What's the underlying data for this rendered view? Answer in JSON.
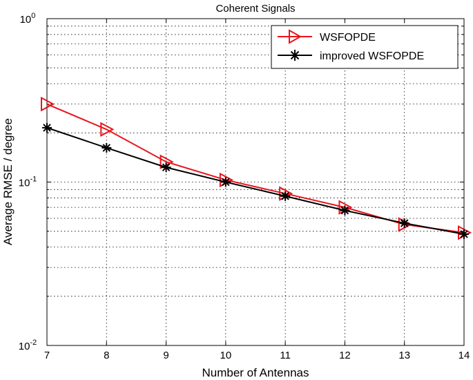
{
  "chart_data": {
    "type": "line",
    "title": "Coherent Signals",
    "xlabel": "Number of Antennas",
    "ylabel": "Average RMSE / degree",
    "x": [
      7,
      8,
      9,
      10,
      11,
      12,
      13,
      14
    ],
    "xlim": [
      7,
      14
    ],
    "ylim": [
      0.01,
      1
    ],
    "yscale": "log",
    "x_ticks": [
      "7",
      "8",
      "9",
      "10",
      "11",
      "12",
      "13",
      "14"
    ],
    "y_ticks": [
      {
        "value": 0.01,
        "base": "10",
        "exp": "-2"
      },
      {
        "value": 0.1,
        "base": "10",
        "exp": "-1"
      },
      {
        "value": 1,
        "base": "10",
        "exp": "0"
      }
    ],
    "grid": true,
    "legend_position": "top-right",
    "series": [
      {
        "name": "WSFOPDE",
        "color": "#e8141c",
        "marker": "triangle-right",
        "values": [
          0.3,
          0.21,
          0.133,
          0.103,
          0.085,
          0.07,
          0.055,
          0.049
        ]
      },
      {
        "name": "improved WSFOPDE",
        "color": "#000000",
        "marker": "asterisk",
        "values": [
          0.215,
          0.162,
          0.123,
          0.1,
          0.082,
          0.067,
          0.056,
          0.048
        ]
      }
    ]
  }
}
